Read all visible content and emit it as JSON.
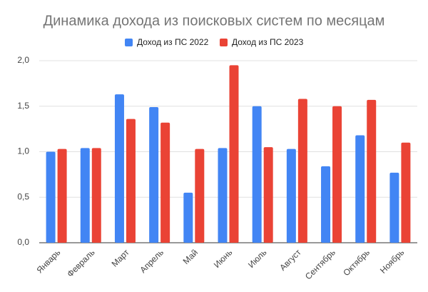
{
  "chart_data": {
    "type": "bar",
    "title": "Динамика дохода из поисковых систем по месяцам",
    "categories": [
      "Январь",
      "Февраль",
      "Март",
      "Апрель",
      "Май",
      "Июнь",
      "Июль",
      "Август",
      "Сентябрь",
      "Октябрь",
      "Ноябрь"
    ],
    "series": [
      {
        "name": "Доход из ПС 2022",
        "color": "#4285f4",
        "values": [
          1.0,
          1.04,
          1.63,
          1.49,
          0.55,
          1.04,
          1.5,
          1.03,
          0.84,
          1.18,
          0.77
        ]
      },
      {
        "name": "Доход из ПС 2023",
        "color": "#ea4335",
        "values": [
          1.03,
          1.04,
          1.36,
          1.32,
          1.03,
          1.95,
          1.05,
          1.58,
          1.5,
          1.57,
          1.1
        ]
      }
    ],
    "ylim": [
      0,
      2
    ],
    "yticks": [
      {
        "value": 0,
        "label": "0,0"
      },
      {
        "value": 0.5,
        "label": "0,5"
      },
      {
        "value": 1,
        "label": "1,0"
      },
      {
        "value": 1.5,
        "label": "1,5"
      },
      {
        "value": 2,
        "label": "2,0"
      }
    ],
    "grid": true
  }
}
